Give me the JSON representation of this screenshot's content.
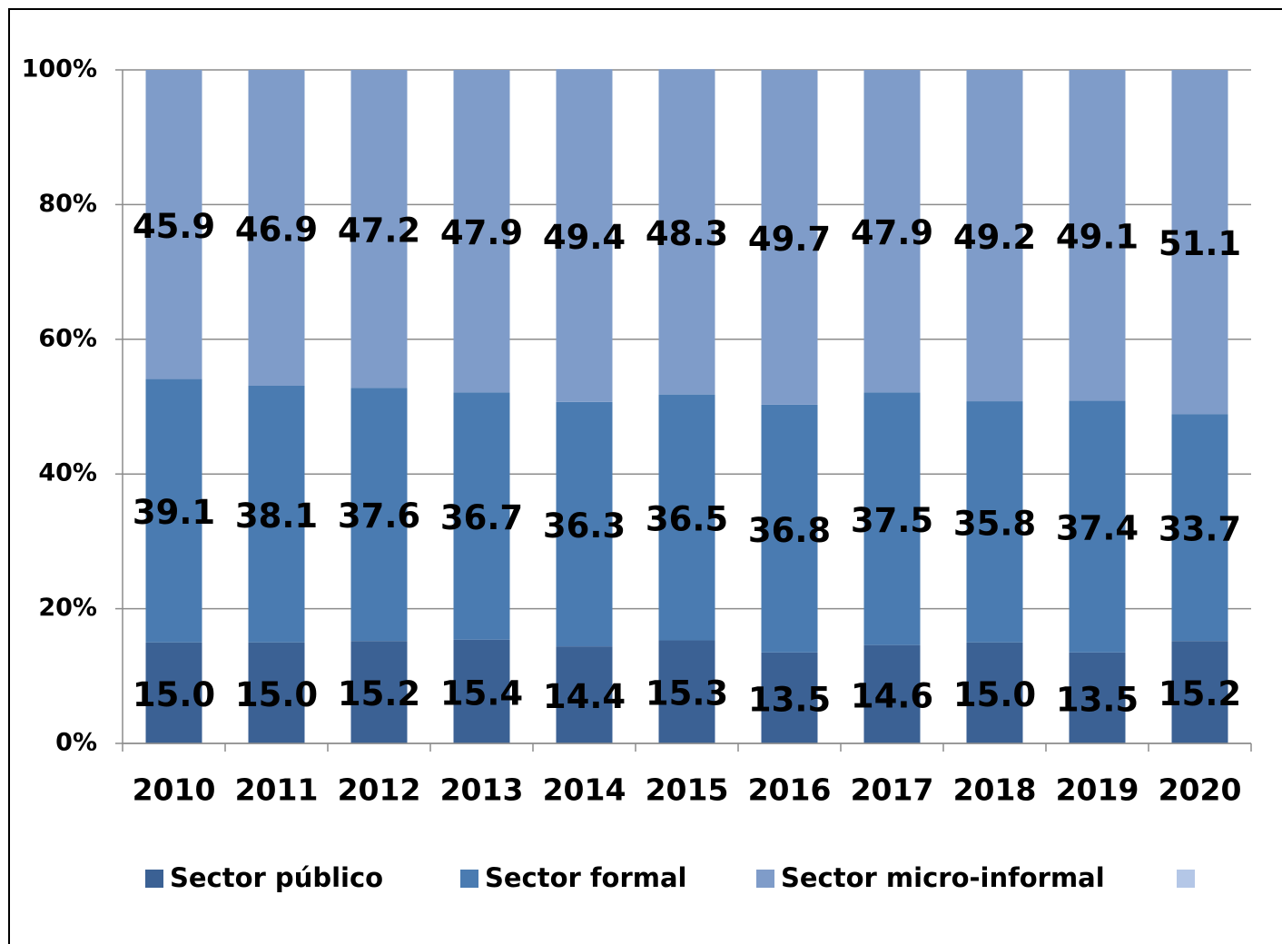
{
  "chart_data": {
    "type": "stacked_bar",
    "categories": [
      "2010",
      "2011",
      "2012",
      "2013",
      "2014",
      "2015",
      "2016",
      "2017",
      "2018",
      "2019",
      "2020"
    ],
    "series": [
      {
        "name": "Sector público",
        "color": "#3b6194",
        "values": [
          15.0,
          15.0,
          15.2,
          15.4,
          14.4,
          15.3,
          13.5,
          14.6,
          15.0,
          13.5,
          15.2
        ],
        "value_labels": [
          "15.0",
          "15.0",
          "15.2",
          "15.4",
          "14.4",
          "15.3",
          "13.5",
          "14.6",
          "15.0",
          "13.5",
          "15.2"
        ]
      },
      {
        "name": "Sector formal",
        "color": "#4a7bb1",
        "values": [
          39.1,
          38.1,
          37.6,
          36.7,
          36.3,
          36.5,
          36.8,
          37.5,
          35.8,
          37.4,
          33.7
        ],
        "value_labels": [
          "39.1",
          "38.1",
          "37.6",
          "36.7",
          "36.3",
          "36.5",
          "36.8",
          "37.5",
          "35.8",
          "37.4",
          "33.7"
        ]
      },
      {
        "name": "Sector micro-informal",
        "color": "#7f9cc9",
        "values": [
          45.9,
          46.9,
          47.2,
          47.9,
          49.4,
          48.3,
          49.7,
          47.9,
          49.2,
          49.1,
          51.1
        ],
        "value_labels": [
          "45.9",
          "46.9",
          "47.2",
          "47.9",
          "49.4",
          "48.3",
          "49.7",
          "47.9",
          "49.2",
          "49.1",
          "51.1"
        ]
      }
    ],
    "ylim": [
      0,
      100
    ],
    "yticks": [
      {
        "value": 0,
        "label": "0%"
      },
      {
        "value": 20,
        "label": "20%"
      },
      {
        "value": 40,
        "label": "40%"
      },
      {
        "value": 60,
        "label": "60%"
      },
      {
        "value": 80,
        "label": "80%"
      },
      {
        "value": 100,
        "label": "100%"
      }
    ],
    "grid": true
  }
}
